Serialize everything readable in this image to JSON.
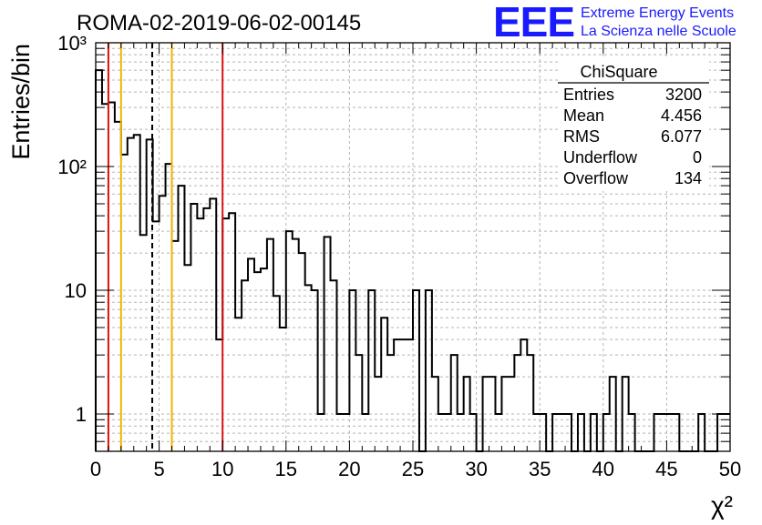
{
  "title": "ROMA-02-2019-06-02-00145",
  "logo": {
    "letters": "EEE",
    "line1": "Extreme Energy Events",
    "line2": "La Scienza nelle Scuole",
    "color": "#1a1aff"
  },
  "stats_box": {
    "header": "ChiSquare",
    "rows": [
      {
        "label": "Entries",
        "value": "3200"
      },
      {
        "label": "Mean",
        "value": "4.456"
      },
      {
        "label": "RMS",
        "value": "6.077"
      },
      {
        "label": "Underflow",
        "value": "0"
      },
      {
        "label": "Overflow",
        "value": "134"
      }
    ]
  },
  "chart_data": {
    "type": "histogram",
    "title": "ROMA-02-2019-06-02-00145",
    "xlabel": "χ²",
    "ylabel": "Entries/bin",
    "xlim": [
      0,
      50
    ],
    "ylim": [
      0.5,
      1000
    ],
    "y_scale": "log",
    "grid": true,
    "x_ticks": [
      "0",
      "5",
      "10",
      "15",
      "20",
      "25",
      "30",
      "35",
      "40",
      "45",
      "50"
    ],
    "y_ticks": [
      "1",
      "10",
      "10²",
      "10³"
    ],
    "bin_width": 0.5,
    "bins": [
      {
        "x_low": 0.0,
        "count": 600
      },
      {
        "x_low": 0.5,
        "count": 320
      },
      {
        "x_low": 1.0,
        "count": 330
      },
      {
        "x_low": 1.5,
        "count": 230
      },
      {
        "x_low": 2.0,
        "count": 125
      },
      {
        "x_low": 2.5,
        "count": 170
      },
      {
        "x_low": 3.0,
        "count": 180
      },
      {
        "x_low": 3.5,
        "count": 28
      },
      {
        "x_low": 4.0,
        "count": 165
      },
      {
        "x_low": 4.5,
        "count": 36
      },
      {
        "x_low": 5.0,
        "count": 58
      },
      {
        "x_low": 5.5,
        "count": 105
      },
      {
        "x_low": 6.0,
        "count": 25
      },
      {
        "x_low": 6.5,
        "count": 70
      },
      {
        "x_low": 7.0,
        "count": 16
      },
      {
        "x_low": 7.5,
        "count": 50
      },
      {
        "x_low": 8.0,
        "count": 38
      },
      {
        "x_low": 8.5,
        "count": 46
      },
      {
        "x_low": 9.0,
        "count": 55
      },
      {
        "x_low": 9.5,
        "count": 4
      },
      {
        "x_low": 10.0,
        "count": 38
      },
      {
        "x_low": 10.5,
        "count": 42
      },
      {
        "x_low": 11.0,
        "count": 6
      },
      {
        "x_low": 11.5,
        "count": 12
      },
      {
        "x_low": 12.0,
        "count": 18
      },
      {
        "x_low": 12.5,
        "count": 14
      },
      {
        "x_low": 13.0,
        "count": 15
      },
      {
        "x_low": 13.5,
        "count": 26
      },
      {
        "x_low": 14.0,
        "count": 9
      },
      {
        "x_low": 14.5,
        "count": 5
      },
      {
        "x_low": 15.0,
        "count": 30
      },
      {
        "x_low": 15.5,
        "count": 26
      },
      {
        "x_low": 16.0,
        "count": 20
      },
      {
        "x_low": 16.5,
        "count": 11
      },
      {
        "x_low": 17.0,
        "count": 10
      },
      {
        "x_low": 17.5,
        "count": 1
      },
      {
        "x_low": 18.0,
        "count": 27
      },
      {
        "x_low": 18.5,
        "count": 12
      },
      {
        "x_low": 19.0,
        "count": 1
      },
      {
        "x_low": 19.5,
        "count": 1
      },
      {
        "x_low": 20.0,
        "count": 10
      },
      {
        "x_low": 20.5,
        "count": 3
      },
      {
        "x_low": 21.0,
        "count": 1
      },
      {
        "x_low": 21.5,
        "count": 10
      },
      {
        "x_low": 22.0,
        "count": 2
      },
      {
        "x_low": 22.5,
        "count": 6
      },
      {
        "x_low": 23.0,
        "count": 3
      },
      {
        "x_low": 23.5,
        "count": 4
      },
      {
        "x_low": 24.0,
        "count": 4
      },
      {
        "x_low": 24.5,
        "count": 4
      },
      {
        "x_low": 25.0,
        "count": 10
      },
      {
        "x_low": 25.5,
        "count": 0.5
      },
      {
        "x_low": 26.0,
        "count": 10
      },
      {
        "x_low": 26.5,
        "count": 2
      },
      {
        "x_low": 27.0,
        "count": 1
      },
      {
        "x_low": 27.5,
        "count": 1
      },
      {
        "x_low": 28.0,
        "count": 3
      },
      {
        "x_low": 28.5,
        "count": 1
      },
      {
        "x_low": 29.0,
        "count": 2
      },
      {
        "x_low": 29.5,
        "count": 1
      },
      {
        "x_low": 30.0,
        "count": 0.5
      },
      {
        "x_low": 30.5,
        "count": 2
      },
      {
        "x_low": 31.0,
        "count": 2
      },
      {
        "x_low": 31.5,
        "count": 1
      },
      {
        "x_low": 32.0,
        "count": 2
      },
      {
        "x_low": 32.5,
        "count": 2
      },
      {
        "x_low": 33.0,
        "count": 3
      },
      {
        "x_low": 33.5,
        "count": 4
      },
      {
        "x_low": 34.0,
        "count": 3
      },
      {
        "x_low": 34.5,
        "count": 1
      },
      {
        "x_low": 35.0,
        "count": 1
      },
      {
        "x_low": 35.5,
        "count": 0.5
      },
      {
        "x_low": 36.0,
        "count": 1
      },
      {
        "x_low": 36.5,
        "count": 1
      },
      {
        "x_low": 37.0,
        "count": 1
      },
      {
        "x_low": 37.5,
        "count": 0.5
      },
      {
        "x_low": 38.0,
        "count": 1
      },
      {
        "x_low": 38.5,
        "count": 0.5
      },
      {
        "x_low": 39.0,
        "count": 1
      },
      {
        "x_low": 39.5,
        "count": 0.5
      },
      {
        "x_low": 40.0,
        "count": 1
      },
      {
        "x_low": 40.5,
        "count": 2
      },
      {
        "x_low": 41.0,
        "count": 0.5
      },
      {
        "x_low": 41.5,
        "count": 2
      },
      {
        "x_low": 42.0,
        "count": 1
      },
      {
        "x_low": 42.5,
        "count": 0.5
      },
      {
        "x_low": 43.0,
        "count": 0.5
      },
      {
        "x_low": 43.5,
        "count": 0.5
      },
      {
        "x_low": 44.0,
        "count": 1
      },
      {
        "x_low": 44.5,
        "count": 1
      },
      {
        "x_low": 45.0,
        "count": 1
      },
      {
        "x_low": 45.5,
        "count": 1
      },
      {
        "x_low": 46.0,
        "count": 0.5
      },
      {
        "x_low": 46.5,
        "count": 0.5
      },
      {
        "x_low": 47.0,
        "count": 0.5
      },
      {
        "x_low": 47.5,
        "count": 1
      },
      {
        "x_low": 48.0,
        "count": 0.5
      },
      {
        "x_low": 48.5,
        "count": 0.5
      },
      {
        "x_low": 49.0,
        "count": 1
      },
      {
        "x_low": 49.5,
        "count": 1
      }
    ],
    "reference_lines": [
      {
        "x": 1.0,
        "color": "#dd1111",
        "style": "solid"
      },
      {
        "x": 2.0,
        "color": "#f0b400",
        "style": "solid"
      },
      {
        "x": 4.456,
        "color": "#000000",
        "style": "dashed"
      },
      {
        "x": 6.0,
        "color": "#f0b400",
        "style": "solid"
      },
      {
        "x": 10.0,
        "color": "#dd1111",
        "style": "solid"
      }
    ],
    "colors": {
      "histogram": "#000000",
      "grid": "#b4b4b4"
    }
  }
}
